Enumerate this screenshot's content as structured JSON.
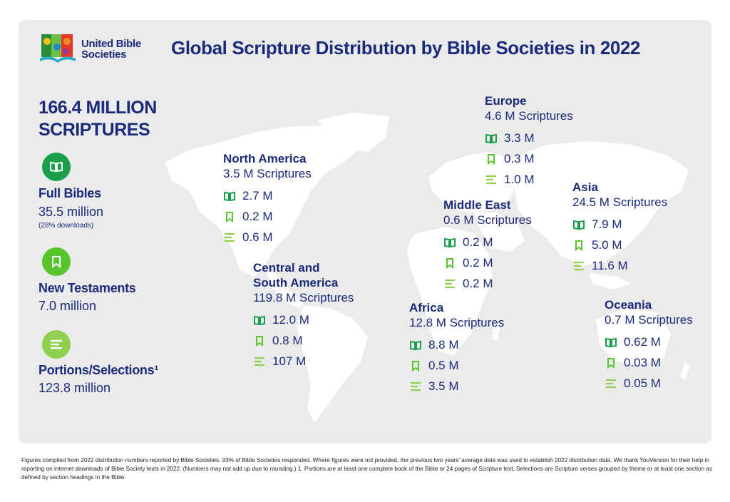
{
  "logo": {
    "line1": "United Bible",
    "line2": "Societies"
  },
  "title": "Global Scripture Distribution by Bible Societies in 2022",
  "total": {
    "line1": "166.4 MILLION",
    "line2": "SCRIPTURES"
  },
  "colors": {
    "navy": "#1b2a7a",
    "teal": "#1a9e4b",
    "lime": "#57c52b",
    "light_green": "#8fd14f"
  },
  "legend": [
    {
      "name": "Full Bibles",
      "value": "35.5 million",
      "note": "(28% downloads)",
      "icon": "open-book-icon"
    },
    {
      "name": "New Testaments",
      "value": "7.0 million",
      "icon": "bookmark-book-icon"
    },
    {
      "name": "Portions/Selections¹",
      "value": "123.8 million",
      "icon": "lines-icon"
    }
  ],
  "regions": [
    {
      "name": "North America",
      "total": "3.5 M Scriptures",
      "bibles": "2.7 M",
      "nt": "0.2 M",
      "portions": "0.6 M"
    },
    {
      "name": "Central and South America",
      "name_line1": "Central and",
      "name_line2": "South America",
      "total": "119.8 M Scriptures",
      "bibles": "12.0 M",
      "nt": "0.8 M",
      "portions": "107 M"
    },
    {
      "name": "Europe",
      "total": "4.6 M Scriptures",
      "bibles": "3.3 M",
      "nt": "0.3 M",
      "portions": "1.0 M"
    },
    {
      "name": "Middle East",
      "total": "0.6 M Scriptures",
      "bibles": "0.2 M",
      "nt": "0.2 M",
      "portions": "0.2 M"
    },
    {
      "name": "Africa",
      "total": "12.8 M Scriptures",
      "bibles": "8.8 M",
      "nt": "0.5 M",
      "portions": "3.5 M"
    },
    {
      "name": "Asia",
      "total": "24.5 M Scriptures",
      "bibles": "7.9 M",
      "nt": "5.0 M",
      "portions": "11.6 M"
    },
    {
      "name": "Oceania",
      "total": "0.7 M Scriptures",
      "bibles": "0.62 M",
      "nt": "0.03 M",
      "portions": "0.05 M"
    }
  ],
  "footnote": "Figures compiled from 2022 distribution numbers reported by Bible Societies. 93% of Bible Societies responded. Where figures were not provided, the previous two years' average data was used to establish 2022 distribution data. We thank YouVersion for their help in reporting on internet downloads of Bible Society texts in 2022. (Numbers may not add up due to rounding.) 1. Portions are at least one complete book of the Bible or 24 pages of Scripture text. Selections are Scripture verses grouped by theme or at least one section as defined by section headings in the Bible."
}
